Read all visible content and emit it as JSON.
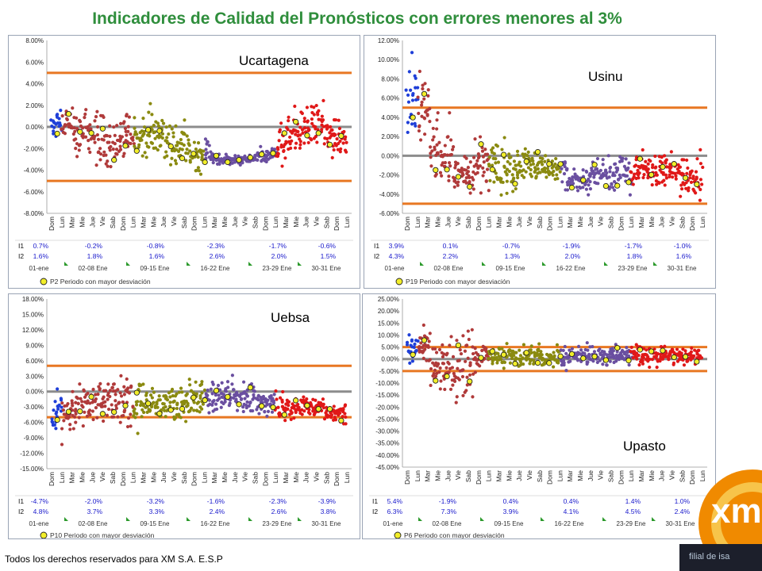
{
  "title": "Indicadores de Calidad del Pronósticos con errores menores al 3%",
  "footer": "Todos los derechos reservados para XM S.A. E.S.P",
  "logo": {
    "text": "xm",
    "subtitle": "filial de isa",
    "colors": {
      "ring": "#f08a00",
      "ring_light": "#f7c44a",
      "band": "#1c1f2b"
    }
  },
  "colors": {
    "limit_line": "#e87722",
    "zero_line": "#8c8c8c",
    "highlight": "#f2ee2a",
    "period_colors": [
      "#1f3fd8",
      "#b03a3a",
      "#8a8a10",
      "#6a4fa0",
      "#e01818",
      "#f07820"
    ]
  },
  "x_tick_labels": [
    "Dom",
    "Lun",
    "Mar",
    "Mie",
    "Jue",
    "Vie",
    "Sab",
    "Dom",
    "Lun",
    "Mar",
    "Mie",
    "Jue",
    "Vie",
    "Sab",
    "Dom",
    "Lun",
    "Mar",
    "Mie",
    "Jue",
    "Vie",
    "Sab",
    "Dom",
    "Lun",
    "Mar",
    "Mie",
    "Jue",
    "Vie",
    "Sab",
    "Dom",
    "Lun"
  ],
  "period_labels": [
    "01-ene",
    "02-08 Ene",
    "09-15 Ene",
    "16-22 Ene",
    "23-29 Ene",
    "30-31 Ene"
  ],
  "chart_data": [
    {
      "type": "scatter",
      "name": "Ucartagena",
      "ylim": [
        -8,
        8
      ],
      "yticks_step": 2,
      "limits": [
        5,
        -5
      ],
      "legend": "P2  Periodo con mayor desviación",
      "table": {
        "row_labels": [
          "I1",
          "I2"
        ],
        "I1": [
          "0.7%",
          "-0.2%",
          "-0.8%",
          "-2.3%",
          "-1.7%",
          "-0.6%"
        ],
        "I2": [
          "1.6%",
          "1.8%",
          "1.6%",
          "2.6%",
          "2.0%",
          "1.5%"
        ]
      },
      "center": [
        0.5,
        -0.3,
        -1.6,
        -1.2,
        -0.5,
        -1.8,
        -2.5,
        -3.0,
        -3.0,
        -2.6,
        -0.9,
        0.2,
        -0.8
      ],
      "spread": [
        1.8,
        2.4,
        2.6,
        2.4,
        2.2,
        2.0,
        1.4,
        0.5,
        0.4,
        0.7,
        2.4,
        2.0,
        2.2
      ]
    },
    {
      "type": "scatter",
      "name": "Usinu",
      "ylim": [
        -6,
        12
      ],
      "yticks_step": 2,
      "limits": [
        5,
        -5
      ],
      "legend": "P19  Periodo con mayor desviación",
      "table": {
        "row_labels": [
          "I1",
          "I2"
        ],
        "I1": [
          "3.9%",
          "0.1%",
          "-0.7%",
          "-1.9%",
          "-1.7%",
          "-1.0%"
        ],
        "I2": [
          "4.3%",
          "2.2%",
          "1.3%",
          "2.0%",
          "1.8%",
          "1.6%"
        ]
      },
      "center": [
        5.0,
        0.5,
        -2.0,
        -0.5,
        -1.2,
        -1.0,
        -1.6,
        -2.5,
        -2.0,
        -1.8,
        -1.5,
        -1.6,
        -2.0
      ],
      "spread": [
        4.0,
        3.0,
        2.0,
        2.8,
        2.6,
        2.2,
        1.6,
        1.2,
        1.8,
        2.0,
        1.8,
        1.8,
        2.4
      ]
    },
    {
      "type": "scatter",
      "name": "Uebsa",
      "ylim": [
        -15,
        18
      ],
      "yticks_step": 3,
      "limits": [
        5,
        -5
      ],
      "legend": "P10  Periodo con mayor desviación",
      "table": {
        "row_labels": [
          "I1",
          "I2"
        ],
        "I1": [
          "-4.7%",
          "-2.0%",
          "-3.2%",
          "-1.6%",
          "-2.3%",
          "-3.9%"
        ],
        "I2": [
          "4.8%",
          "3.7%",
          "3.3%",
          "2.4%",
          "2.6%",
          "3.8%"
        ]
      },
      "center": [
        -4.0,
        -2.5,
        -2.0,
        -2.0,
        -2.8,
        -2.5,
        -1.2,
        -0.8,
        -1.2,
        -2.0,
        -3.0,
        -3.0,
        -4.5
      ],
      "spread": [
        4.0,
        4.0,
        4.5,
        6.0,
        3.0,
        3.0,
        4.0,
        3.0,
        3.0,
        2.5,
        2.5,
        2.5,
        2.0
      ]
    },
    {
      "type": "scatter",
      "name": "Upasto",
      "ylim": [
        -45,
        25
      ],
      "yticks_step": 5,
      "limits": [
        5,
        -5
      ],
      "legend": "P6  Periodo con mayor desviación",
      "table": {
        "row_labels": [
          "I1",
          "I2"
        ],
        "I1": [
          "5.4%",
          "-1.9%",
          "0.4%",
          "0.4%",
          "1.4%",
          "1.0%"
        ],
        "I2": [
          "6.3%",
          "7.3%",
          "3.9%",
          "4.1%",
          "4.5%",
          "2.4%"
        ]
      },
      "center": [
        5.0,
        -2.0,
        -3.0,
        1.0,
        0.5,
        0.8,
        0.5,
        1.0,
        1.5,
        1.5,
        2.0,
        1.5,
        1.0
      ],
      "spread": [
        6.0,
        12.0,
        14.0,
        4.0,
        4.0,
        4.0,
        4.0,
        4.0,
        4.5,
        4.5,
        4.5,
        4.0,
        3.0
      ]
    }
  ]
}
